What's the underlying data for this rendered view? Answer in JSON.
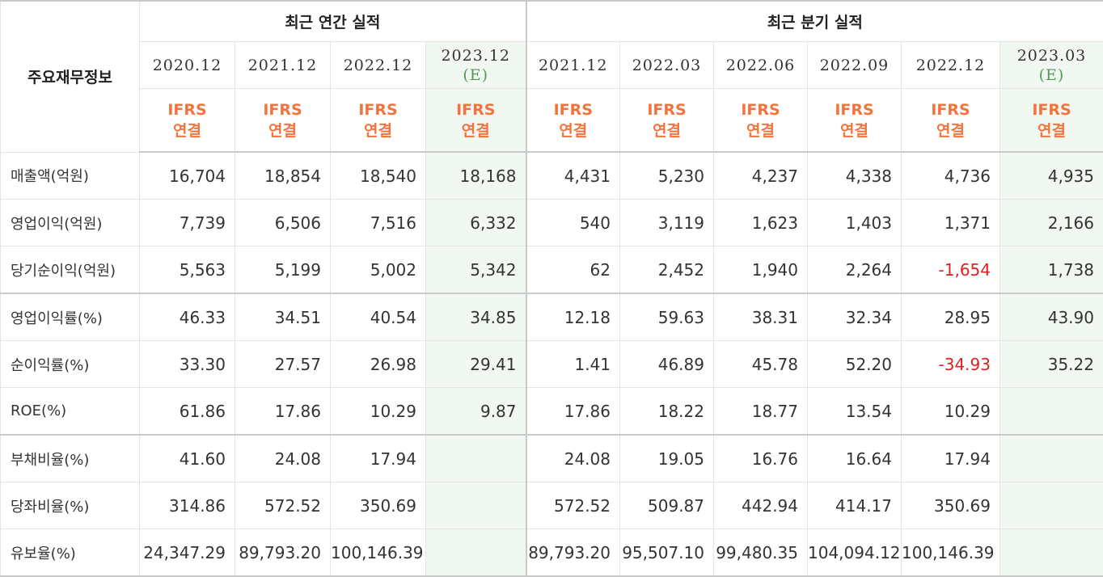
{
  "corner_label": "주요재무정보",
  "annual_header": "최근 연간 실적",
  "quarter_header": "최근 분기 실적",
  "periods": [
    {
      "label": "2020.12",
      "est": "",
      "ifrs": "IFRS",
      "consol": "연결"
    },
    {
      "label": "2021.12",
      "est": "",
      "ifrs": "IFRS",
      "consol": "연결"
    },
    {
      "label": "2022.12",
      "est": "",
      "ifrs": "IFRS",
      "consol": "연결"
    },
    {
      "label": "2023.12",
      "est": "(E)",
      "ifrs": "IFRS",
      "consol": "연결"
    },
    {
      "label": "2021.12",
      "est": "",
      "ifrs": "IFRS",
      "consol": "연결"
    },
    {
      "label": "2022.03",
      "est": "",
      "ifrs": "IFRS",
      "consol": "연결"
    },
    {
      "label": "2022.06",
      "est": "",
      "ifrs": "IFRS",
      "consol": "연결"
    },
    {
      "label": "2022.09",
      "est": "",
      "ifrs": "IFRS",
      "consol": "연결"
    },
    {
      "label": "2022.12",
      "est": "",
      "ifrs": "IFRS",
      "consol": "연결"
    },
    {
      "label": "2023.03",
      "est": "(E)",
      "ifrs": "IFRS",
      "consol": "연결"
    }
  ],
  "rows": [
    {
      "label": "매출액(억원)",
      "values": [
        "16,704",
        "18,854",
        "18,540",
        "18,168",
        "4,431",
        "5,230",
        "4,237",
        "4,338",
        "4,736",
        "4,935"
      ]
    },
    {
      "label": "영업이익(억원)",
      "values": [
        "7,739",
        "6,506",
        "7,516",
        "6,332",
        "540",
        "3,119",
        "1,623",
        "1,403",
        "1,371",
        "2,166"
      ]
    },
    {
      "label": "당기순이익(억원)",
      "values": [
        "5,563",
        "5,199",
        "5,002",
        "5,342",
        "62",
        "2,452",
        "1,940",
        "2,264",
        "-1,654",
        "1,738"
      ]
    },
    {
      "label": "영업이익률(%)",
      "values": [
        "46.33",
        "34.51",
        "40.54",
        "34.85",
        "12.18",
        "59.63",
        "38.31",
        "32.34",
        "28.95",
        "43.90"
      ]
    },
    {
      "label": "순이익률(%)",
      "values": [
        "33.30",
        "27.57",
        "26.98",
        "29.41",
        "1.41",
        "46.89",
        "45.78",
        "52.20",
        "-34.93",
        "35.22"
      ]
    },
    {
      "label": "ROE(%)",
      "values": [
        "61.86",
        "17.86",
        "10.29",
        "9.87",
        "17.86",
        "18.22",
        "18.77",
        "13.54",
        "10.29",
        ""
      ]
    },
    {
      "label": "부채비율(%)",
      "values": [
        "41.60",
        "24.08",
        "17.94",
        "",
        "24.08",
        "19.05",
        "16.76",
        "16.64",
        "17.94",
        ""
      ]
    },
    {
      "label": "당좌비율(%)",
      "values": [
        "314.86",
        "572.52",
        "350.69",
        "",
        "572.52",
        "509.87",
        "442.94",
        "414.17",
        "350.69",
        ""
      ]
    },
    {
      "label": "유보율(%)",
      "values": [
        "24,347.29",
        "89,793.20",
        "100,146.39",
        "",
        "89,793.20",
        "95,507.10",
        "99,480.35",
        "104,094.12",
        "100,146.39",
        ""
      ]
    }
  ],
  "colors": {
    "ifrs": "#f2743d",
    "estimate_text": "#559955",
    "estimate_bg": "#f1f8f1",
    "negative": "#e02020"
  }
}
